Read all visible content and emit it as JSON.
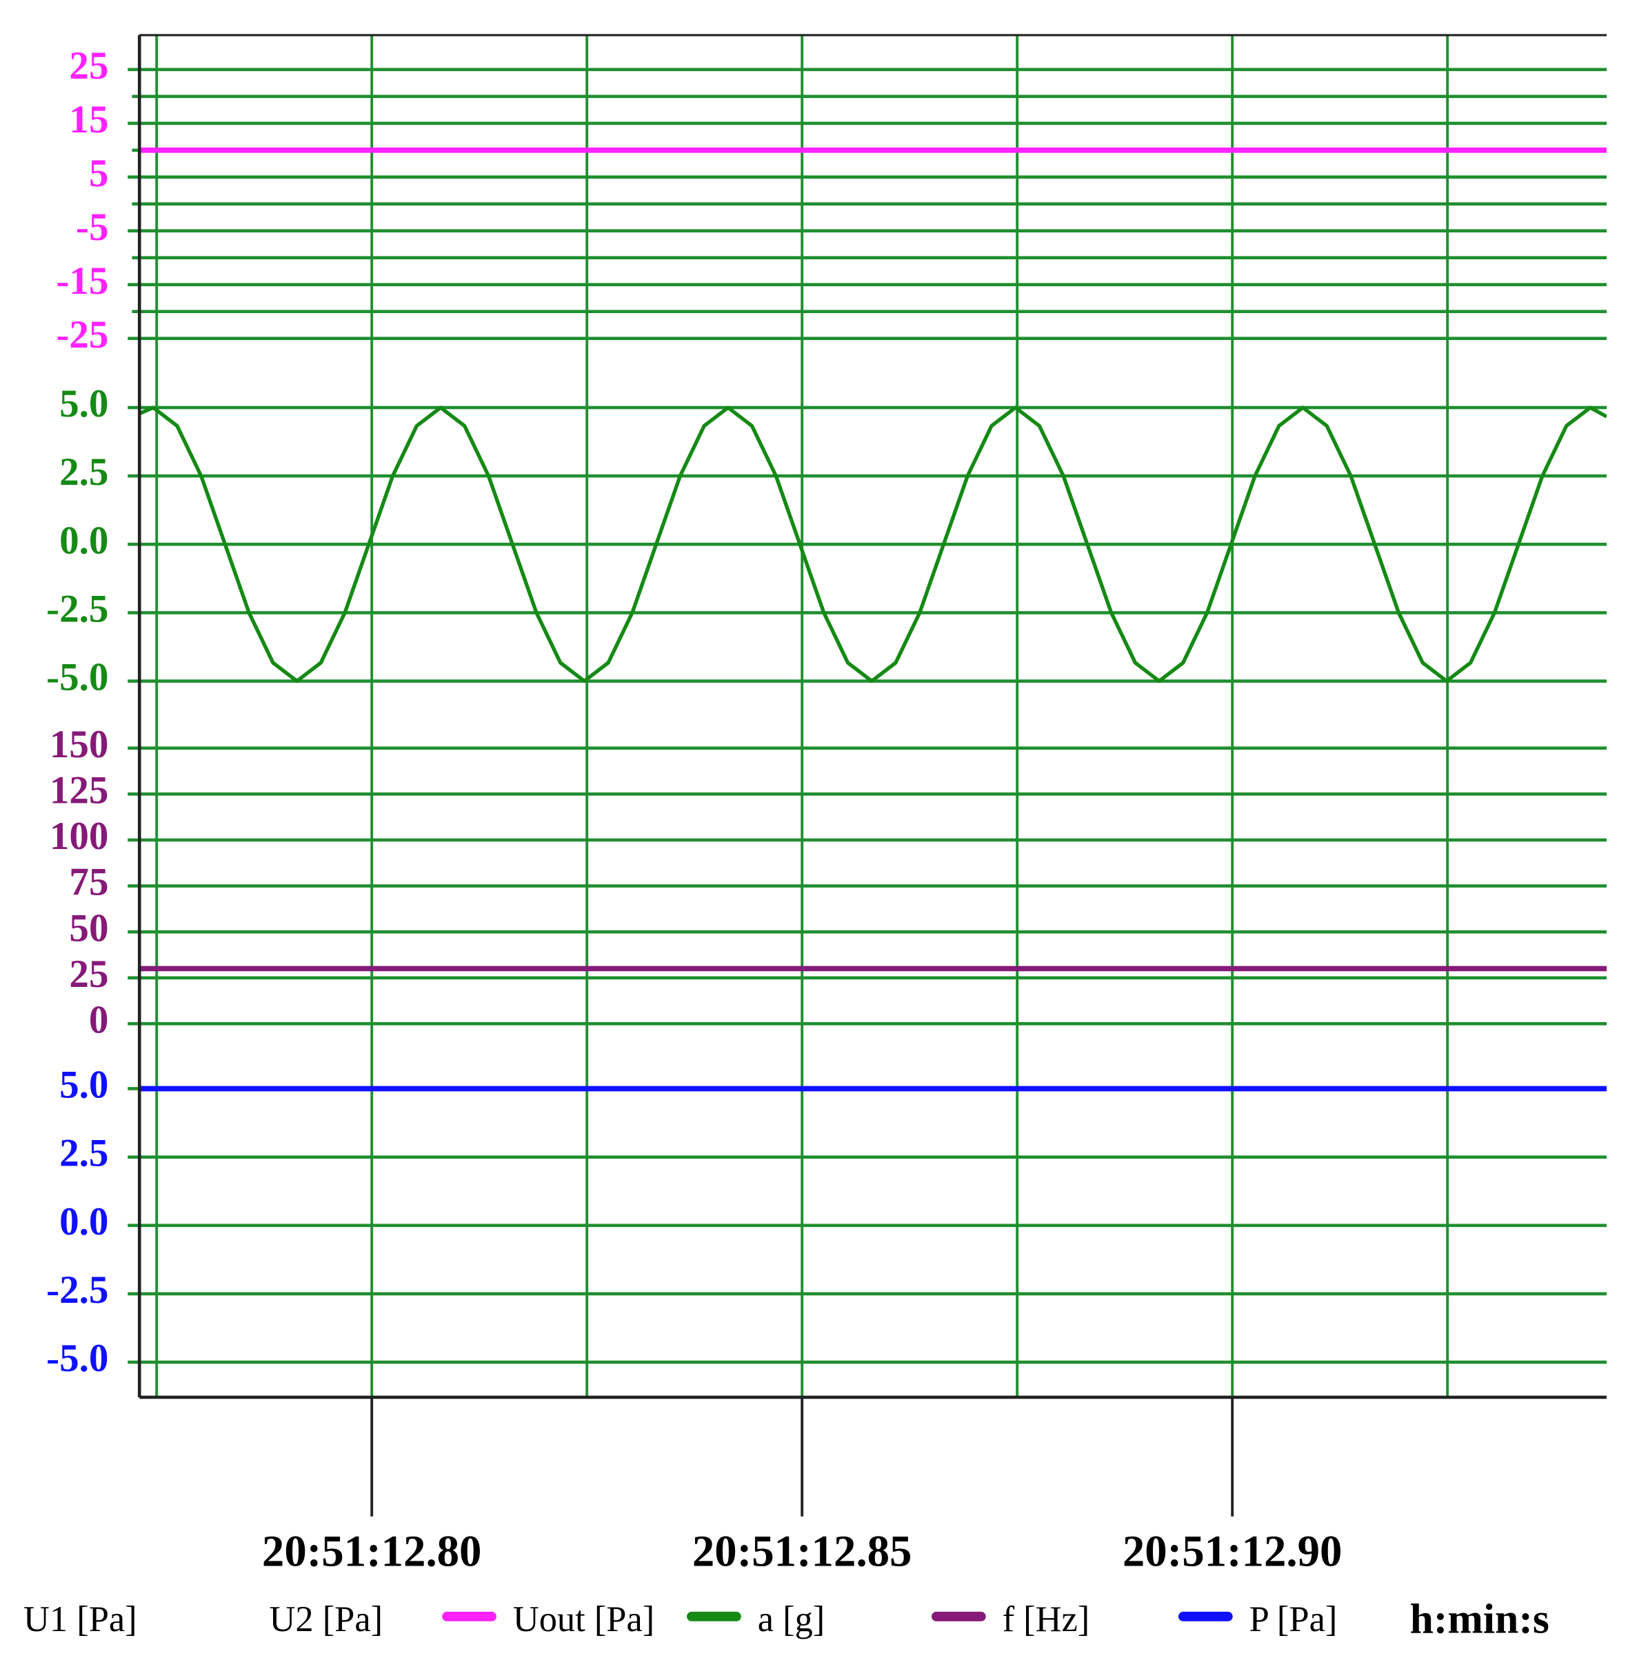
{
  "chart_data": {
    "type": "line",
    "x_label": "h:min:s",
    "xlim": [
      12.773,
      12.9435
    ],
    "xticks": [
      {
        "value": 12.8,
        "label": "20:51:12.80"
      },
      {
        "value": 12.85,
        "label": "20:51:12.85"
      },
      {
        "value": 12.9,
        "label": "20:51:12.90"
      }
    ],
    "xgrid": [
      12.775,
      12.8,
      12.825,
      12.85,
      12.875,
      12.9,
      12.925
    ],
    "legend_only": [
      "U1 [Pa]",
      "U2 [Pa]"
    ],
    "panels": [
      {
        "color": "#ff22ff",
        "ylim": [
          -25,
          31
        ],
        "yticks": [
          25,
          15,
          5,
          -5,
          -15,
          -25
        ],
        "yminor": [
          20,
          10,
          0,
          -10,
          -20
        ]
      },
      {
        "color": "#158a15",
        "ylim": [
          -5,
          5
        ],
        "yticks": [
          {
            "value": 5,
            "label": "5.0"
          },
          2.5,
          {
            "value": 0,
            "label": "0.0"
          },
          -2.5,
          {
            "value": -5,
            "label": "-5.0"
          }
        ]
      },
      {
        "color": "#861a78",
        "ylim": [
          0,
          150
        ],
        "yticks": [
          150,
          125,
          100,
          75,
          50,
          25,
          0
        ]
      },
      {
        "color": "#1010ff",
        "ylim": [
          -5,
          5
        ],
        "yticks": [
          {
            "value": 5,
            "label": "5.0"
          },
          2.5,
          {
            "value": 0,
            "label": "0.0"
          },
          -2.5,
          {
            "value": -5,
            "label": "-5.0"
          }
        ]
      }
    ],
    "series": [
      {
        "name": "Uout [Pa]",
        "color": "#ff22ff",
        "panel": 0,
        "x": [
          12.773,
          12.9435
        ],
        "values": [
          10,
          10
        ]
      },
      {
        "name": "a [g]",
        "color": "#158a15",
        "panel": 1,
        "x": [
          12.773,
          12.7746,
          12.77738,
          12.78017,
          12.78295,
          12.78573,
          12.78852,
          12.7913,
          12.79408,
          12.79687,
          12.79965,
          12.80243,
          12.80522,
          12.808,
          12.81078,
          12.81357,
          12.81635,
          12.81913,
          12.82192,
          12.8247,
          12.82748,
          12.83027,
          12.83305,
          12.83583,
          12.83862,
          12.8414,
          12.84418,
          12.84697,
          12.84975,
          12.85253,
          12.85532,
          12.8581,
          12.86088,
          12.86367,
          12.86645,
          12.86923,
          12.87202,
          12.8748,
          12.87758,
          12.88037,
          12.88315,
          12.88593,
          12.88872,
          12.8915,
          12.89428,
          12.89707,
          12.89985,
          12.90263,
          12.90542,
          12.9082,
          12.91098,
          12.91377,
          12.91655,
          12.91933,
          12.92212,
          12.9249,
          12.92768,
          12.93047,
          12.93325,
          12.93603,
          12.93882,
          12.9416,
          12.9435
        ],
        "values": [
          4.78,
          5,
          4.33,
          2.5,
          0,
          -2.5,
          -4.33,
          -5,
          -4.33,
          -2.5,
          0,
          2.5,
          4.33,
          5,
          4.33,
          2.5,
          0,
          -2.5,
          -4.33,
          -5,
          -4.33,
          -2.5,
          0,
          2.5,
          4.33,
          5,
          4.33,
          2.5,
          0,
          -2.5,
          -4.33,
          -5,
          -4.33,
          -2.5,
          0,
          2.5,
          4.33,
          5,
          4.33,
          2.5,
          0,
          -2.5,
          -4.33,
          -5,
          -4.33,
          -2.5,
          0,
          2.5,
          4.33,
          5,
          4.33,
          2.5,
          0,
          -2.5,
          -4.33,
          -5,
          -4.33,
          -2.5,
          0,
          2.5,
          4.33,
          5,
          4.67
        ]
      },
      {
        "name": "f [Hz]",
        "color": "#861a78",
        "panel": 2,
        "x": [
          12.773,
          12.9435
        ],
        "values": [
          30,
          30
        ]
      },
      {
        "name": "P [Pa]",
        "color": "#1010ff",
        "panel": 3,
        "x": [
          12.773,
          12.9435
        ],
        "values": [
          5,
          5
        ]
      }
    ]
  }
}
